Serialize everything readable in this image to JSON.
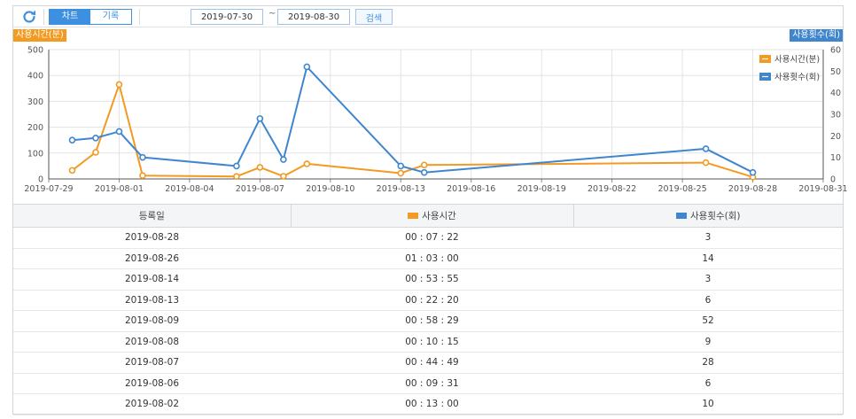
{
  "toolbar": {
    "tab_chart": "차트",
    "tab_records": "기록",
    "date_from": "2019-07-30",
    "date_sep": "~",
    "date_to": "2019-08-30",
    "search_label": "검색",
    "refresh_icon": "refresh-icon"
  },
  "chart_data": {
    "type": "line",
    "left_axis_title": "사용시간(분)",
    "right_axis_title": "사용횟수(회)",
    "x_axis_ticks": [
      "2019-07-29",
      "2019-08-01",
      "2019-08-04",
      "2019-08-07",
      "2019-08-10",
      "2019-08-13",
      "2019-08-16",
      "2019-08-19",
      "2019-08-22",
      "2019-08-25",
      "2019-08-28",
      "2019-08-31"
    ],
    "x_range": [
      "2019-07-29",
      "2019-08-31"
    ],
    "y_left_ticks": [
      0,
      100,
      200,
      300,
      400,
      500
    ],
    "y_right_ticks": [
      0,
      10,
      20,
      30,
      40,
      50,
      60
    ],
    "y_left_range": [
      0,
      500
    ],
    "y_right_range": [
      0,
      60
    ],
    "grid": true,
    "legend_position": "top-right",
    "series": [
      {
        "name": "사용시간(분)",
        "axis": "left",
        "color": "#f29a21",
        "points": [
          {
            "x": "2019-07-30",
            "y": 33
          },
          {
            "x": "2019-07-31",
            "y": 103
          },
          {
            "x": "2019-08-01",
            "y": 365
          },
          {
            "x": "2019-08-02",
            "y": 13
          },
          {
            "x": "2019-08-06",
            "y": 9.5
          },
          {
            "x": "2019-08-07",
            "y": 44.8
          },
          {
            "x": "2019-08-08",
            "y": 10.3
          },
          {
            "x": "2019-08-09",
            "y": 58.5
          },
          {
            "x": "2019-08-13",
            "y": 22.3
          },
          {
            "x": "2019-08-14",
            "y": 53.9
          },
          {
            "x": "2019-08-26",
            "y": 63
          },
          {
            "x": "2019-08-28",
            "y": 7.4
          }
        ]
      },
      {
        "name": "사용횟수(회)",
        "axis": "right",
        "color": "#3f86cf",
        "points": [
          {
            "x": "2019-07-30",
            "y": 18
          },
          {
            "x": "2019-07-31",
            "y": 19
          },
          {
            "x": "2019-08-01",
            "y": 22
          },
          {
            "x": "2019-08-02",
            "y": 10
          },
          {
            "x": "2019-08-06",
            "y": 6
          },
          {
            "x": "2019-08-07",
            "y": 28
          },
          {
            "x": "2019-08-08",
            "y": 9
          },
          {
            "x": "2019-08-09",
            "y": 52
          },
          {
            "x": "2019-08-13",
            "y": 6
          },
          {
            "x": "2019-08-14",
            "y": 3
          },
          {
            "x": "2019-08-26",
            "y": 14
          },
          {
            "x": "2019-08-28",
            "y": 3
          }
        ]
      }
    ]
  },
  "table": {
    "headers": {
      "date": "등록일",
      "time": "사용시간",
      "count": "사용횟수(회)"
    },
    "header_colors": {
      "time": "#f29a21",
      "count": "#3f86cf"
    },
    "rows": [
      {
        "date": "2019-08-28",
        "time": "00 : 07 : 22",
        "count": "3"
      },
      {
        "date": "2019-08-26",
        "time": "01 : 03 : 00",
        "count": "14"
      },
      {
        "date": "2019-08-14",
        "time": "00 : 53 : 55",
        "count": "3"
      },
      {
        "date": "2019-08-13",
        "time": "00 : 22 : 20",
        "count": "6"
      },
      {
        "date": "2019-08-09",
        "time": "00 : 58 : 29",
        "count": "52"
      },
      {
        "date": "2019-08-08",
        "time": "00 : 10 : 15",
        "count": "9"
      },
      {
        "date": "2019-08-07",
        "time": "00 : 44 : 49",
        "count": "28"
      },
      {
        "date": "2019-08-06",
        "time": "00 : 09 : 31",
        "count": "6"
      },
      {
        "date": "2019-08-02",
        "time": "00 : 13 : 00",
        "count": "10"
      }
    ]
  }
}
